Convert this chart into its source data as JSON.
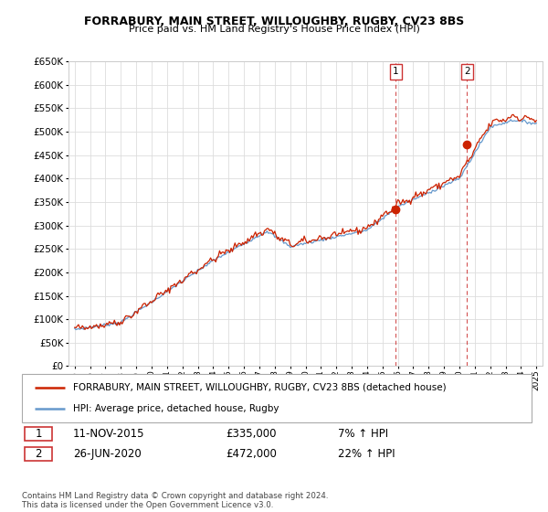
{
  "title": "FORRABURY, MAIN STREET, WILLOUGHBY, RUGBY, CV23 8BS",
  "subtitle": "Price paid vs. HM Land Registry's House Price Index (HPI)",
  "legend_line1": "FORRABURY, MAIN STREET, WILLOUGHBY, RUGBY, CV23 8BS (detached house)",
  "legend_line2": "HPI: Average price, detached house, Rugby",
  "footnote": "Contains HM Land Registry data © Crown copyright and database right 2024.\nThis data is licensed under the Open Government Licence v3.0.",
  "sale1_date": "11-NOV-2015",
  "sale1_price": "£335,000",
  "sale1_hpi": "7% ↑ HPI",
  "sale1_year": 2015.87,
  "sale1_value": 335000,
  "sale2_date": "26-JUN-2020",
  "sale2_price": "£472,000",
  "sale2_hpi": "22% ↑ HPI",
  "sale2_year": 2020.5,
  "sale2_value": 472000,
  "ylim_min": 0,
  "ylim_max": 650000,
  "hpi_color": "#6699cc",
  "price_color": "#cc2200",
  "vline_color": "#cc3333",
  "grid_color": "#dddddd",
  "xstart": 1995,
  "xend": 2025
}
